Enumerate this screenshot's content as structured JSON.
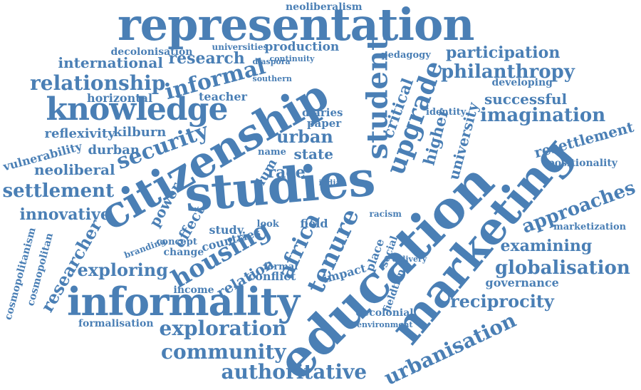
{
  "color": "#4a7fb5",
  "words": [
    {
      "text": "representation"
    },
    {
      "text": "neoliberalism"
    },
    {
      "text": "decolonisation"
    },
    {
      "text": "universities"
    },
    {
      "text": "production"
    },
    {
      "text": "continuity"
    },
    {
      "text": "international"
    },
    {
      "text": "research"
    },
    {
      "text": "participation"
    },
    {
      "text": "pedagogy"
    },
    {
      "text": "relationship"
    },
    {
      "text": "informal"
    },
    {
      "text": "philanthropy"
    },
    {
      "text": "knowledge"
    },
    {
      "text": "horizontal"
    },
    {
      "text": "teacher"
    },
    {
      "text": "southern"
    },
    {
      "text": "diaspora"
    },
    {
      "text": "imagination"
    },
    {
      "text": "successful"
    },
    {
      "text": "developing"
    },
    {
      "text": "reflexivity"
    },
    {
      "text": "kilburn"
    },
    {
      "text": "diaries"
    },
    {
      "text": "paper"
    },
    {
      "text": "urban"
    },
    {
      "text": "vulnerability"
    },
    {
      "text": "durban"
    },
    {
      "text": "security"
    },
    {
      "text": "state"
    },
    {
      "text": "resettlement"
    },
    {
      "text": "neoliberal"
    },
    {
      "text": "race"
    },
    {
      "text": "name"
    },
    {
      "text": "identity"
    },
    {
      "text": "positionality"
    },
    {
      "text": "settlement"
    },
    {
      "text": "citizenship"
    },
    {
      "text": "studies"
    },
    {
      "text": "student"
    },
    {
      "text": "upgrade"
    },
    {
      "text": "critical"
    },
    {
      "text": "higher"
    },
    {
      "text": "university"
    },
    {
      "text": "approaches"
    },
    {
      "text": "innovative"
    },
    {
      "text": "power"
    },
    {
      "text": "effect"
    },
    {
      "text": "slum"
    },
    {
      "text": "india"
    },
    {
      "text": "marketization"
    },
    {
      "text": "cosmopolitanism"
    },
    {
      "text": "cosmopolitan"
    },
    {
      "text": "researcher"
    },
    {
      "text": "study"
    },
    {
      "text": "countries"
    },
    {
      "text": "housing"
    },
    {
      "text": "africa"
    },
    {
      "text": "tenure"
    },
    {
      "text": "examining"
    },
    {
      "text": "concept"
    },
    {
      "text": "change"
    },
    {
      "text": "branding"
    },
    {
      "text": "look"
    },
    {
      "text": "field"
    },
    {
      "text": "place"
    },
    {
      "text": "social"
    },
    {
      "text": "racism"
    },
    {
      "text": "exploring"
    },
    {
      "text": "relation"
    },
    {
      "text": "impact"
    },
    {
      "text": "globalisation"
    },
    {
      "text": "income"
    },
    {
      "text": "conflict"
    },
    {
      "text": "formal"
    },
    {
      "text": "governance"
    },
    {
      "text": "informality"
    },
    {
      "text": "education"
    },
    {
      "text": "marketing"
    },
    {
      "text": "reciprocity"
    },
    {
      "text": "fieldtrip"
    },
    {
      "text": "delivery"
    },
    {
      "text": "decolonial"
    },
    {
      "text": "environment"
    },
    {
      "text": "formalisation"
    },
    {
      "text": "exploration"
    },
    {
      "text": "urbanisation"
    },
    {
      "text": "community"
    },
    {
      "text": "authoritative"
    }
  ]
}
